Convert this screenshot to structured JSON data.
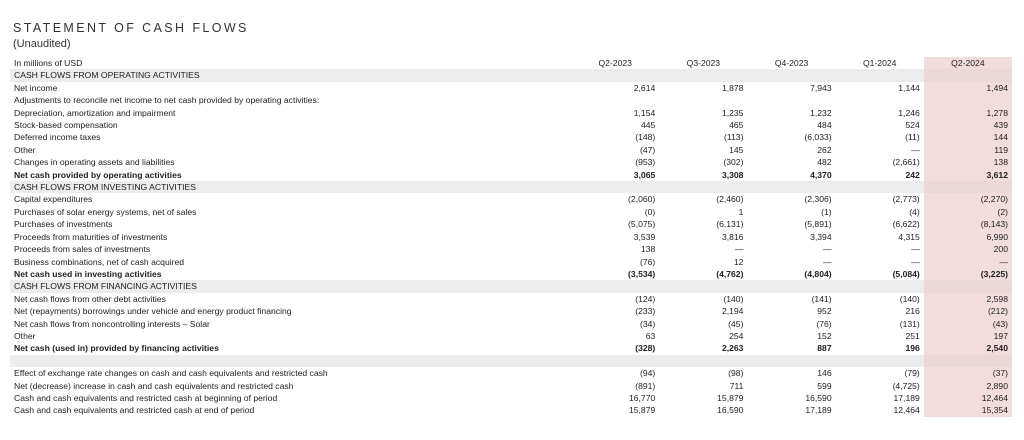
{
  "title": "STATEMENT OF CASH FLOWS",
  "subtitle": "(Unaudited)",
  "units_label": "In millions of USD",
  "periods": [
    "Q2-2023",
    "Q3-2023",
    "Q4-2023",
    "Q1-2024",
    "Q2-2024"
  ],
  "rows": [
    {
      "label": "CASH FLOWS FROM OPERATING ACTIVITIES",
      "values": [
        "",
        "",
        "",
        "",
        ""
      ]
    },
    {
      "label": "Net income",
      "values": [
        "2,614",
        "1,878",
        "7,943",
        "1,144",
        "1,494"
      ]
    },
    {
      "label": "Adjustments to reconcile net income to net cash provided by operating activities:",
      "values": [
        "",
        "",
        "",
        "",
        ""
      ]
    },
    {
      "label": "Depreciation, amortization and impairment",
      "values": [
        "1,154",
        "1,235",
        "1,232",
        "1,246",
        "1,278"
      ]
    },
    {
      "label": "Stock-based compensation",
      "values": [
        "445",
        "465",
        "484",
        "524",
        "439"
      ]
    },
    {
      "label": "Deferred income taxes",
      "values": [
        "(148)",
        "(113)",
        "(6,033)",
        "(11)",
        "144"
      ]
    },
    {
      "label": "Other",
      "values": [
        "(47)",
        "145",
        "262",
        "—",
        "119"
      ]
    },
    {
      "label": "Changes in operating assets and liabilities",
      "values": [
        "(953)",
        "(302)",
        "482",
        "(2,661)",
        "138"
      ]
    },
    {
      "label": "Net cash provided by operating activities",
      "values": [
        "3,065",
        "3,308",
        "4,370",
        "242",
        "3,612"
      ]
    },
    {
      "label": "CASH FLOWS FROM INVESTING ACTIVITIES",
      "values": [
        "",
        "",
        "",
        "",
        ""
      ]
    },
    {
      "label": "Capital expenditures",
      "values": [
        "(2,060)",
        "(2,460)",
        "(2,306)",
        "(2,773)",
        "(2,270)"
      ]
    },
    {
      "label": "Purchases of solar energy systems, net of sales",
      "values": [
        "(0)",
        "1",
        "(1)",
        "(4)",
        "(2)"
      ]
    },
    {
      "label": "Purchases of investments",
      "values": [
        "(5,075)",
        "(6,131)",
        "(5,891)",
        "(6,622)",
        "(8,143)"
      ]
    },
    {
      "label": "Proceeds from maturities of investments",
      "values": [
        "3,539",
        "3,816",
        "3,394",
        "4,315",
        "6,990"
      ]
    },
    {
      "label": "Proceeds from sales of investments",
      "values": [
        "138",
        "—",
        "—",
        "—",
        "200"
      ]
    },
    {
      "label": "Business combinations, net of cash acquired",
      "values": [
        "(76)",
        "12",
        "—",
        "—",
        "—"
      ]
    },
    {
      "label": "Net cash used in investing activities",
      "values": [
        "(3,534)",
        "(4,762)",
        "(4,804)",
        "(5,084)",
        "(3,225)"
      ]
    },
    {
      "label": "CASH FLOWS FROM FINANCING ACTIVITIES",
      "values": [
        "",
        "",
        "",
        "",
        ""
      ]
    },
    {
      "label": "Net cash flows from other debt activities",
      "values": [
        "(124)",
        "(140)",
        "(141)",
        "(140)",
        "2,598"
      ]
    },
    {
      "label": "Net (repayments) borrowings under vehicle and energy product financing",
      "values": [
        "(233)",
        "2,194",
        "952",
        "216",
        "(212)"
      ]
    },
    {
      "label": "Net cash flows from noncontrolling interests – Solar",
      "values": [
        "(34)",
        "(45)",
        "(76)",
        "(131)",
        "(43)"
      ]
    },
    {
      "label": "Other",
      "values": [
        "63",
        "254",
        "152",
        "251",
        "197"
      ]
    },
    {
      "label": "Net cash (used in) provided by financing activities",
      "values": [
        "(328)",
        "2,263",
        "887",
        "196",
        "2,540"
      ]
    },
    {
      "label": "",
      "values": [
        "",
        "",
        "",
        "",
        ""
      ]
    },
    {
      "label": "Effect of exchange rate changes on cash and cash equivalents and restricted cash",
      "values": [
        "(94)",
        "(98)",
        "146",
        "(79)",
        "(37)"
      ]
    },
    {
      "label": "Net (decrease) increase in cash and cash equivalents and restricted cash",
      "values": [
        "(891)",
        "711",
        "599",
        "(4,725)",
        "2,890"
      ]
    },
    {
      "label": "Cash and cash equivalents and restricted cash at beginning of period",
      "values": [
        "16,770",
        "15,879",
        "16,590",
        "17,189",
        "12,464"
      ]
    },
    {
      "label": "Cash and cash equivalents and restricted cash at end of period",
      "values": [
        "15,879",
        "16,590",
        "17,189",
        "12,464",
        "15,354"
      ]
    }
  ]
}
